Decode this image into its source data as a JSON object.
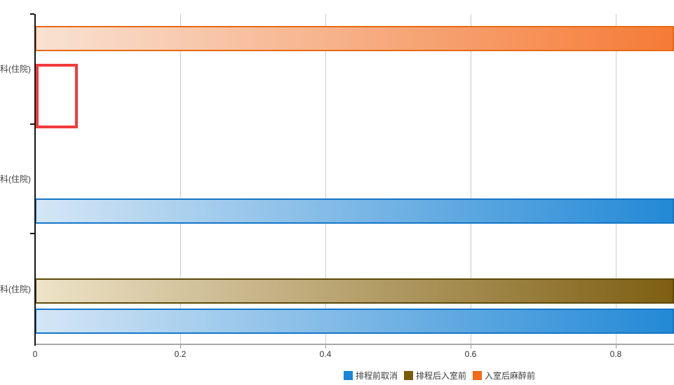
{
  "chart_data": {
    "type": "bar",
    "orientation": "horizontal",
    "title": "",
    "categories": [
      {
        "label": "科(住院)"
      },
      {
        "label": "科(住院)"
      },
      {
        "label": "科(住院)"
      }
    ],
    "series": [
      {
        "key": "post-entry-pre-anesthesia",
        "name": "入室后麻醉前",
        "fill_start": "#f8e2d3",
        "fill_end": "#f57b36",
        "border": "#e66a12",
        "values": [
          0.88,
          0,
          0
        ]
      },
      {
        "key": "post-schedule-pre-entry",
        "name": "排程后入室前",
        "fill_start": "#eee3c8",
        "fill_end": "#7e5f12",
        "border": "#5d4a0a",
        "values": [
          0,
          0,
          0.88
        ]
      },
      {
        "key": "pre-schedule-cancel",
        "name": "排程前取消",
        "fill_start": "#d4e6f5",
        "fill_end": "#2389d6",
        "border": "#1576c8",
        "values": [
          0,
          0.88,
          0.88
        ]
      }
    ],
    "x_axis": {
      "min": 0,
      "max_visible": 0.88,
      "ticks": [
        {
          "value": 0,
          "label": "0"
        },
        {
          "value": 0.2,
          "label": "0.2"
        },
        {
          "value": 0.4,
          "label": "0.4"
        },
        {
          "value": 0.6,
          "label": "0.6"
        },
        {
          "value": 0.8,
          "label": "0.8"
        }
      ]
    },
    "grid": true,
    "annotation": {
      "shape": "rectangle",
      "border_color": "#f23b3b",
      "category_index": 0,
      "x_value_start": 0,
      "x_value_end": 0.058
    }
  },
  "legend": {
    "position": "bottom",
    "items": [
      {
        "label": "排程前取消",
        "color": "#1a86d9"
      },
      {
        "label": "排程后入室前",
        "color": "#7a5c08"
      },
      {
        "label": "入室后麻醉前",
        "color": "#f26a1a"
      }
    ]
  }
}
